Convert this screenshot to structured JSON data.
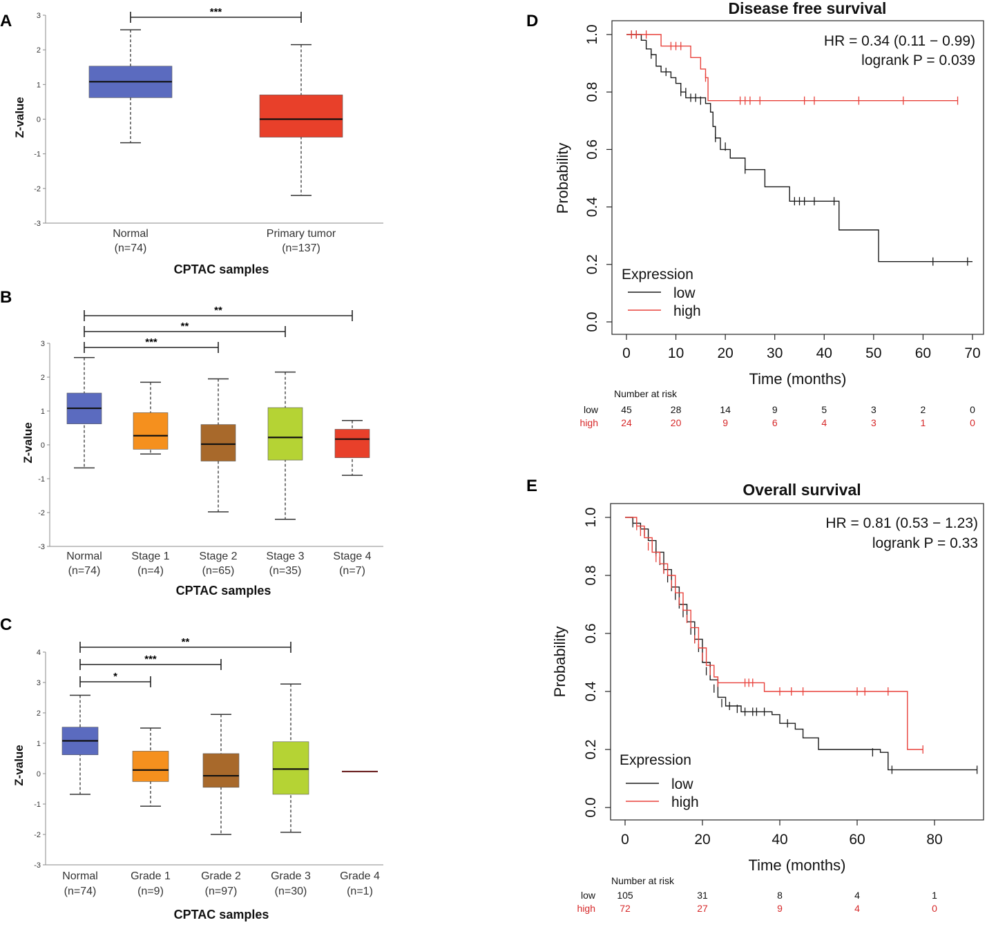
{
  "panels": {
    "A": "A",
    "B": "B",
    "C": "C",
    "D": "D",
    "E": "E"
  },
  "chart_data": [
    {
      "id": "A",
      "type": "box",
      "ylabel": "Z-value",
      "xlabel": "CPTAC samples",
      "ylim": [
        -3,
        3
      ],
      "yticks": [
        3,
        2,
        1,
        0,
        -1,
        -2,
        -3
      ],
      "boxes": [
        {
          "name": "Normal",
          "n": "(n=74)",
          "color": "#5b6bbf",
          "min": -0.68,
          "q1": 0.62,
          "median": 1.08,
          "q3": 1.53,
          "max": 2.58
        },
        {
          "name": "Primary tumor",
          "n": "(n=137)",
          "color": "#e8402a",
          "min": -2.2,
          "q1": -0.52,
          "median": 0.0,
          "q3": 0.7,
          "max": 2.15
        }
      ],
      "significance": [
        {
          "from": 0,
          "to": 1,
          "label": "***"
        }
      ]
    },
    {
      "id": "B",
      "type": "box",
      "ylabel": "Z-value",
      "xlabel": "CPTAC samples",
      "ylim": [
        -3,
        3
      ],
      "yticks": [
        3,
        2,
        1,
        0,
        -1,
        -2,
        -3
      ],
      "boxes": [
        {
          "name": "Normal",
          "n": "(n=74)",
          "color": "#5b6bbf",
          "min": -0.68,
          "q1": 0.62,
          "median": 1.08,
          "q3": 1.53,
          "max": 2.58
        },
        {
          "name": "Stage 1",
          "n": "(n=4)",
          "color": "#f5901e",
          "min": -0.27,
          "q1": -0.13,
          "median": 0.27,
          "q3": 0.95,
          "max": 1.85
        },
        {
          "name": "Stage 2",
          "n": "(n=65)",
          "color": "#a8692b",
          "min": -1.98,
          "q1": -0.48,
          "median": 0.02,
          "q3": 0.6,
          "max": 1.95
        },
        {
          "name": "Stage 3",
          "n": "(n=35)",
          "color": "#b5d334",
          "min": -2.2,
          "q1": -0.45,
          "median": 0.22,
          "q3": 1.1,
          "max": 2.15
        },
        {
          "name": "Stage 4",
          "n": "(n=7)",
          "color": "#e8402a",
          "min": -0.9,
          "q1": -0.38,
          "median": 0.17,
          "q3": 0.46,
          "max": 0.72
        }
      ],
      "significance": [
        {
          "from": 0,
          "to": 4,
          "label": "**"
        },
        {
          "from": 0,
          "to": 3,
          "label": "**"
        },
        {
          "from": 0,
          "to": 2,
          "label": "***"
        }
      ]
    },
    {
      "id": "C",
      "type": "box",
      "ylabel": "Z-value",
      "xlabel": "CPTAC samples",
      "ylim": [
        -3,
        4
      ],
      "yticks": [
        4,
        3,
        2,
        1,
        0,
        -1,
        -2,
        -3
      ],
      "boxes": [
        {
          "name": "Normal",
          "n": "(n=74)",
          "color": "#5b6bbf",
          "min": -0.68,
          "q1": 0.62,
          "median": 1.08,
          "q3": 1.53,
          "max": 2.58
        },
        {
          "name": "Grade 1",
          "n": "(n=9)",
          "color": "#f5901e",
          "min": -1.07,
          "q1": -0.26,
          "median": 0.12,
          "q3": 0.74,
          "max": 1.5
        },
        {
          "name": "Grade 2",
          "n": "(n=97)",
          "color": "#a8692b",
          "min": -2.0,
          "q1": -0.45,
          "median": -0.07,
          "q3": 0.66,
          "max": 1.95
        },
        {
          "name": "Grade 3",
          "n": "(n=30)",
          "color": "#b5d334",
          "min": -1.93,
          "q1": -0.68,
          "median": 0.15,
          "q3": 1.05,
          "max": 2.95
        },
        {
          "name": "Grade 4",
          "n": "(n=1)",
          "color": "#6a1f1f",
          "min": 0.07,
          "q1": 0.07,
          "median": 0.07,
          "q3": 0.07,
          "max": 0.07
        }
      ],
      "significance": [
        {
          "from": 0,
          "to": 3,
          "label": "**"
        },
        {
          "from": 0,
          "to": 2,
          "label": "***"
        },
        {
          "from": 0,
          "to": 1,
          "label": "*"
        }
      ]
    },
    {
      "id": "D",
      "type": "line",
      "title": "Disease free survival",
      "xlabel": "Time (months)",
      "ylabel": "Probability",
      "xlim": [
        0,
        70
      ],
      "ylim": [
        0,
        1
      ],
      "xticks": [
        0,
        10,
        20,
        30,
        40,
        50,
        60,
        70
      ],
      "yticks": [
        0.0,
        0.2,
        0.4,
        0.6,
        0.8,
        1.0
      ],
      "hr": "HR = 0.34 (0.11 − 0.99)",
      "logrank": "logrank P = 0.039",
      "legend_title": "Expression",
      "series": [
        {
          "name": "low",
          "color": "#1a1a1a",
          "steps": [
            [
              0,
              1.0
            ],
            [
              3,
              0.98
            ],
            [
              4,
              0.95
            ],
            [
              5,
              0.93
            ],
            [
              6,
              0.89
            ],
            [
              7,
              0.87
            ],
            [
              9,
              0.85
            ],
            [
              10,
              0.83
            ],
            [
              11,
              0.8
            ],
            [
              12,
              0.78
            ],
            [
              16,
              0.76
            ],
            [
              17,
              0.73
            ],
            [
              17.5,
              0.68
            ],
            [
              18,
              0.64
            ],
            [
              19,
              0.6
            ],
            [
              21,
              0.57
            ],
            [
              24,
              0.53
            ],
            [
              28,
              0.47
            ],
            [
              33,
              0.42
            ],
            [
              43,
              0.32
            ],
            [
              51,
              0.21
            ],
            [
              70,
              0.21
            ]
          ],
          "censors": [
            [
              1,
              1.0
            ],
            [
              2,
              1.0
            ],
            [
              5,
              0.93
            ],
            [
              8,
              0.87
            ],
            [
              11,
              0.8
            ],
            [
              12,
              0.8
            ],
            [
              13,
              0.78
            ],
            [
              14,
              0.78
            ],
            [
              15,
              0.77
            ],
            [
              18,
              0.64
            ],
            [
              20,
              0.61
            ],
            [
              24,
              0.53
            ],
            [
              34,
              0.42
            ],
            [
              35,
              0.42
            ],
            [
              36,
              0.42
            ],
            [
              38,
              0.42
            ],
            [
              42,
              0.42
            ],
            [
              62,
              0.21
            ],
            [
              69,
              0.21
            ]
          ]
        },
        {
          "name": "high",
          "color": "#e8403a",
          "steps": [
            [
              0,
              1.0
            ],
            [
              7,
              0.96
            ],
            [
              13,
              0.92
            ],
            [
              15,
              0.88
            ],
            [
              16,
              0.85
            ],
            [
              16.5,
              0.77
            ],
            [
              67,
              0.77
            ]
          ],
          "censors": [
            [
              1,
              1.0
            ],
            [
              2,
              1.0
            ],
            [
              4,
              1.0
            ],
            [
              9,
              0.96
            ],
            [
              10,
              0.96
            ],
            [
              11,
              0.96
            ],
            [
              16,
              0.85
            ],
            [
              23,
              0.77
            ],
            [
              24,
              0.77
            ],
            [
              25,
              0.77
            ],
            [
              27,
              0.77
            ],
            [
              36,
              0.77
            ],
            [
              38,
              0.77
            ],
            [
              47,
              0.77
            ],
            [
              56,
              0.77
            ],
            [
              67,
              0.77
            ]
          ]
        }
      ],
      "risk_header": "Number at risk",
      "risk_times": [
        0,
        10,
        20,
        30,
        40,
        50,
        60,
        70
      ],
      "risk": [
        {
          "name": "low",
          "values": [
            "45",
            "28",
            "14",
            "9",
            "5",
            "3",
            "2",
            "0"
          ]
        },
        {
          "name": "high",
          "values": [
            "24",
            "20",
            "9",
            "6",
            "4",
            "3",
            "1",
            "0"
          ]
        }
      ]
    },
    {
      "id": "E",
      "type": "line",
      "title": "Overall survival",
      "xlabel": "Time (months)",
      "ylabel": "Probability",
      "xlim": [
        0,
        90
      ],
      "ylim": [
        0,
        1
      ],
      "xticks": [
        0,
        20,
        40,
        60,
        80
      ],
      "yticks": [
        0.0,
        0.2,
        0.4,
        0.6,
        0.8,
        1.0
      ],
      "hr": "HR = 0.81 (0.53 − 1.23)",
      "logrank": "logrank P = 0.33",
      "legend_title": "Expression",
      "series": [
        {
          "name": "low",
          "color": "#1a1a1a",
          "steps": [
            [
              0,
              1.0
            ],
            [
              2,
              0.98
            ],
            [
              4,
              0.96
            ],
            [
              6,
              0.92
            ],
            [
              8,
              0.88
            ],
            [
              10,
              0.82
            ],
            [
              12,
              0.76
            ],
            [
              14,
              0.7
            ],
            [
              16,
              0.64
            ],
            [
              18,
              0.58
            ],
            [
              20,
              0.5
            ],
            [
              22,
              0.44
            ],
            [
              24,
              0.38
            ],
            [
              26,
              0.35
            ],
            [
              30,
              0.33
            ],
            [
              38,
              0.32
            ],
            [
              40,
              0.29
            ],
            [
              44,
              0.27
            ],
            [
              46,
              0.24
            ],
            [
              50,
              0.2
            ],
            [
              66,
              0.19
            ],
            [
              68,
              0.13
            ],
            [
              91,
              0.13
            ]
          ],
          "censors": [
            [
              2,
              0.98
            ],
            [
              5,
              0.95
            ],
            [
              7,
              0.9
            ],
            [
              8,
              0.88
            ],
            [
              9,
              0.85
            ],
            [
              10,
              0.82
            ],
            [
              11,
              0.79
            ],
            [
              12,
              0.76
            ],
            [
              13,
              0.73
            ],
            [
              14,
              0.7
            ],
            [
              15,
              0.67
            ],
            [
              17,
              0.61
            ],
            [
              18,
              0.58
            ],
            [
              19,
              0.55
            ],
            [
              21,
              0.47
            ],
            [
              23,
              0.41
            ],
            [
              25,
              0.36
            ],
            [
              27,
              0.35
            ],
            [
              29,
              0.34
            ],
            [
              31,
              0.33
            ],
            [
              33,
              0.33
            ],
            [
              34,
              0.33
            ],
            [
              36,
              0.33
            ],
            [
              42,
              0.29
            ],
            [
              64,
              0.19
            ],
            [
              69,
              0.13
            ],
            [
              91,
              0.13
            ]
          ]
        },
        {
          "name": "high",
          "color": "#e8403a",
          "steps": [
            [
              0,
              1.0
            ],
            [
              3,
              0.97
            ],
            [
              5,
              0.93
            ],
            [
              7,
              0.88
            ],
            [
              9,
              0.84
            ],
            [
              11,
              0.8
            ],
            [
              13,
              0.74
            ],
            [
              15,
              0.68
            ],
            [
              17,
              0.62
            ],
            [
              19,
              0.55
            ],
            [
              21,
              0.49
            ],
            [
              23,
              0.45
            ],
            [
              24,
              0.43
            ],
            [
              36,
              0.4
            ],
            [
              73,
              0.2
            ],
            [
              77,
              0.2
            ]
          ],
          "censors": [
            [
              3,
              0.97
            ],
            [
              4,
              0.95
            ],
            [
              6,
              0.9
            ],
            [
              8,
              0.86
            ],
            [
              10,
              0.82
            ],
            [
              12,
              0.77
            ],
            [
              14,
              0.71
            ],
            [
              16,
              0.65
            ],
            [
              18,
              0.58
            ],
            [
              20,
              0.52
            ],
            [
              22,
              0.47
            ],
            [
              24,
              0.43
            ],
            [
              31,
              0.43
            ],
            [
              32,
              0.43
            ],
            [
              33,
              0.43
            ],
            [
              40,
              0.4
            ],
            [
              43,
              0.4
            ],
            [
              46,
              0.4
            ],
            [
              60,
              0.4
            ],
            [
              62,
              0.4
            ],
            [
              68,
              0.4
            ],
            [
              77,
              0.2
            ]
          ]
        }
      ],
      "risk_header": "Number at risk",
      "risk_times": [
        0,
        20,
        40,
        60,
        80
      ],
      "risk": [
        {
          "name": "low",
          "values": [
            "105",
            "31",
            "8",
            "4",
            "1"
          ]
        },
        {
          "name": "high",
          "values": [
            "72",
            "27",
            "9",
            "4",
            "0"
          ]
        }
      ]
    }
  ]
}
